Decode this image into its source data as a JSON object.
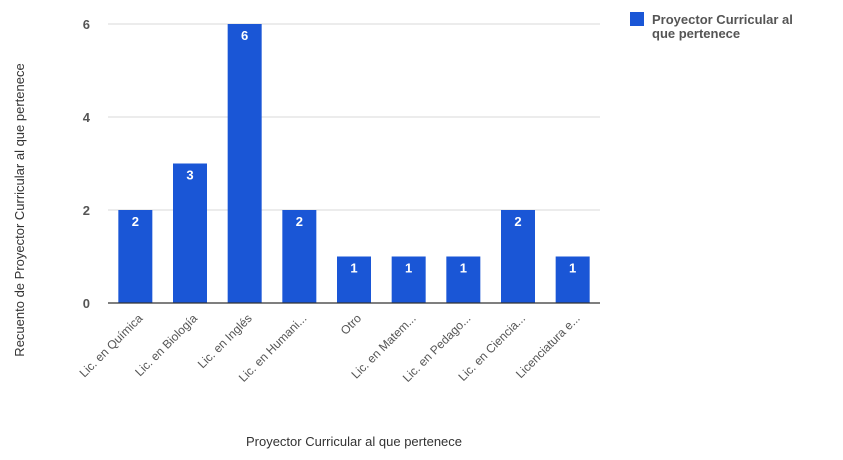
{
  "chart_data": {
    "type": "bar",
    "title": "",
    "xlabel": "Proyector Curricular al que pertenece",
    "ylabel": "Recuento de Proyector Curricular al que pertenece",
    "categories": [
      "Lic. en Química",
      "Lic. en Biología",
      "Lic. en Inglés",
      "Lic. en Humani...",
      "Otro",
      "Lic. en Matem...",
      "Lic. en Pedago...",
      "Lic. en Ciencia...",
      "Licenciatura e..."
    ],
    "series": [
      {
        "name": "Proyector Curricular al que pertenece",
        "values": [
          2,
          3,
          6,
          2,
          1,
          1,
          1,
          2,
          1
        ],
        "color": "#1a56d6"
      }
    ],
    "ylim": [
      0,
      6
    ],
    "yticks": [
      "0",
      "2",
      "4",
      "6"
    ],
    "grid": true,
    "legend": {
      "placement": "top-right",
      "labels": [
        "Proyector Curricular al",
        "que pertenece"
      ]
    },
    "data_labels": true
  }
}
